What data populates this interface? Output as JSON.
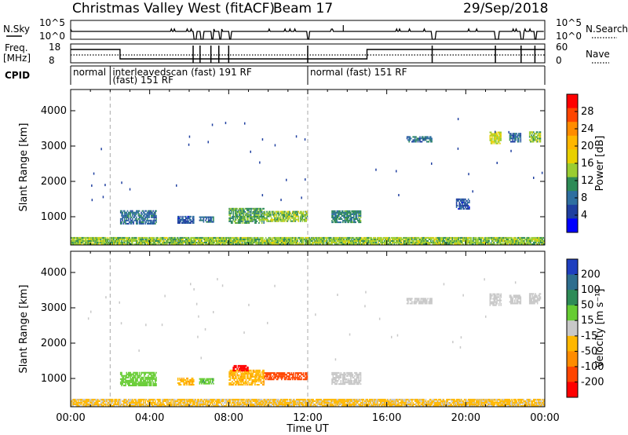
{
  "header": {
    "title": "Christmas Valley West (fitACF)",
    "beam": "Beam 17",
    "date": "29/Sep/2018"
  },
  "status_panels": {
    "nsky_label": "N.Sky",
    "nsearch_label": "N.Search",
    "freq_label_line1": "Freq.",
    "freq_label_line2": "[MHz]",
    "nave_label": "Nave",
    "cpid_label": "CPID",
    "nsky_ticks": [
      "10^5",
      "10^0"
    ],
    "nsearch_ticks": [
      "10^5",
      "10^0"
    ],
    "freq_ticks": [
      "18",
      "8"
    ],
    "nave_ticks": [
      "60",
      "0"
    ],
    "cpid_segments": [
      {
        "line1": "normal",
        "line2": "",
        "start_h": 0.0,
        "end_h": 2.0
      },
      {
        "line1": "interleavedscan (fast) 191 RF",
        "line2": "(fast) 151 RF",
        "start_h": 2.0,
        "end_h": 12.0
      },
      {
        "line1": "normal (fast) 151 RF",
        "line2": "",
        "start_h": 12.0,
        "end_h": 24.0
      }
    ]
  },
  "colorbars": {
    "power": {
      "label": "Power [dB]",
      "ticks": [
        "28",
        "24",
        "20",
        "16",
        "12",
        "8",
        "4"
      ],
      "colors": [
        "#ff0000",
        "#ff4500",
        "#ff8c00",
        "#ffb700",
        "#e8d000",
        "#9acd32",
        "#2e8b57",
        "#2f6fa0",
        "#1f3fa0",
        "#0000ff"
      ]
    },
    "velocity": {
      "label": "Velocity [m s⁻¹]",
      "ticks": [
        "200",
        "100",
        "50",
        "15",
        "-15",
        "-50",
        "-100",
        "-200"
      ],
      "colors": [
        "#1f3fbf",
        "#2e6e8e",
        "#2e8b57",
        "#66cc33",
        "#c8c8c8",
        "#ffb700",
        "#ff8c00",
        "#ff4500",
        "#ff0000"
      ]
    }
  },
  "chart_data": [
    {
      "type": "heatmap",
      "name": "power",
      "ylabel": "Slant Range [km]",
      "xlabel": "Time UT",
      "xlim": [
        0,
        24
      ],
      "ylim": [
        200,
        4600
      ],
      "yticks": [
        1000,
        2000,
        3000,
        4000
      ],
      "xtick_labels": [
        "00:00",
        "04:00",
        "08:00",
        "12:00",
        "16:00",
        "20:00",
        "00:00"
      ],
      "cpid_markers_h": [
        2.0,
        12.0
      ],
      "regions": [
        {
          "t": [
            0.0,
            24.0
          ],
          "r": [
            200,
            420
          ],
          "v": 14
        },
        {
          "t": [
            2.5,
            4.3
          ],
          "r": [
            780,
            1150
          ],
          "v": 8
        },
        {
          "t": [
            5.4,
            6.2
          ],
          "r": [
            800,
            1000
          ],
          "v": 6
        },
        {
          "t": [
            6.5,
            7.2
          ],
          "r": [
            830,
            1000
          ],
          "v": 8
        },
        {
          "t": [
            8.0,
            9.8
          ],
          "r": [
            800,
            1250
          ],
          "v": 12
        },
        {
          "t": [
            9.8,
            12.0
          ],
          "r": [
            850,
            1150
          ],
          "v": 14
        },
        {
          "t": [
            13.2,
            14.7
          ],
          "r": [
            820,
            1150
          ],
          "v": 10
        },
        {
          "t": [
            17.0,
            18.3
          ],
          "r": [
            3100,
            3250
          ],
          "v": 8
        },
        {
          "t": [
            19.5,
            20.2
          ],
          "r": [
            1200,
            1500
          ],
          "v": 6
        },
        {
          "t": [
            21.2,
            21.8
          ],
          "r": [
            3050,
            3400
          ],
          "v": 16
        },
        {
          "t": [
            22.2,
            22.8
          ],
          "r": [
            3100,
            3350
          ],
          "v": 8
        },
        {
          "t": [
            23.2,
            23.8
          ],
          "r": [
            3100,
            3400
          ],
          "v": 14
        }
      ]
    },
    {
      "type": "heatmap",
      "name": "velocity",
      "ylabel": "Slant Range [km]",
      "xlabel": "Time UT",
      "xlim": [
        0,
        24
      ],
      "ylim": [
        200,
        4600
      ],
      "yticks": [
        1000,
        2000,
        3000,
        4000
      ],
      "xtick_labels": [
        "00:00",
        "04:00",
        "08:00",
        "12:00",
        "16:00",
        "20:00",
        "00:00"
      ],
      "cpid_markers_h": [
        2.0,
        12.0
      ],
      "regions": [
        {
          "t": [
            0.0,
            24.0
          ],
          "r": [
            200,
            420
          ],
          "v": -20
        },
        {
          "t": [
            2.5,
            4.3
          ],
          "r": [
            780,
            1150
          ],
          "v": 30
        },
        {
          "t": [
            5.4,
            6.2
          ],
          "r": [
            800,
            1000
          ],
          "v": -40
        },
        {
          "t": [
            6.5,
            7.2
          ],
          "r": [
            830,
            1000
          ],
          "v": 40
        },
        {
          "t": [
            8.0,
            9.8
          ],
          "r": [
            800,
            1250
          ],
          "v": -40
        },
        {
          "t": [
            8.2,
            9.0
          ],
          "r": [
            1200,
            1350
          ],
          "v": -250
        },
        {
          "t": [
            9.8,
            12.0
          ],
          "r": [
            950,
            1150
          ],
          "v": -150
        },
        {
          "t": [
            13.2,
            14.7
          ],
          "r": [
            820,
            1150
          ],
          "v": 0
        },
        {
          "t": [
            17.0,
            18.3
          ],
          "r": [
            3100,
            3250
          ],
          "v": 0
        },
        {
          "t": [
            21.2,
            21.8
          ],
          "r": [
            3050,
            3400
          ],
          "v": 0
        },
        {
          "t": [
            22.2,
            22.8
          ],
          "r": [
            3100,
            3350
          ],
          "v": 0
        },
        {
          "t": [
            23.2,
            23.8
          ],
          "r": [
            3100,
            3400
          ],
          "v": 0
        }
      ]
    }
  ]
}
